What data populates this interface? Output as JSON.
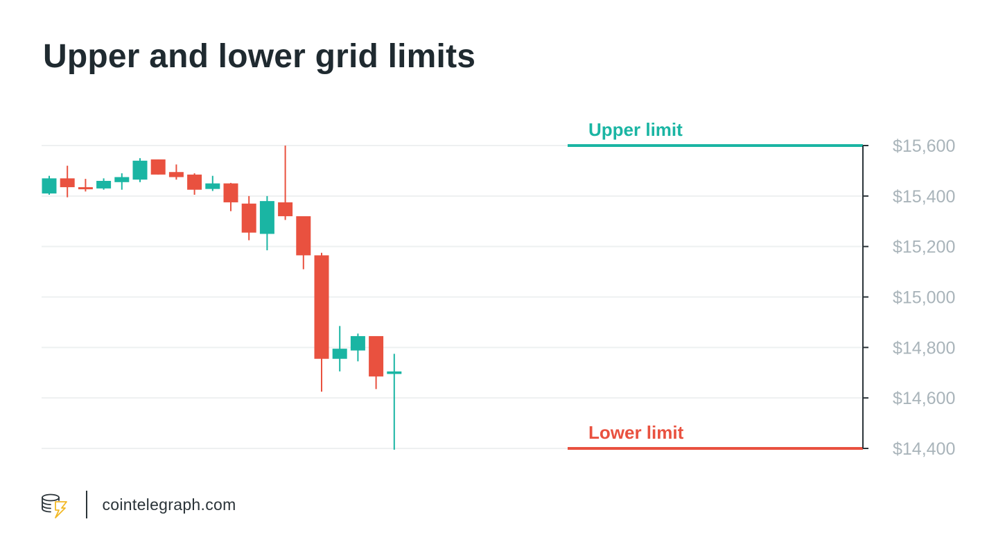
{
  "chart_data": {
    "type": "candlestick",
    "title": "Upper and lower grid limits",
    "ylim": [
      14400,
      15600
    ],
    "yticks": [
      15600,
      15400,
      15200,
      15000,
      14800,
      14600,
      14400
    ],
    "ytick_labels": [
      "$15,600",
      "$15,400",
      "$15,200",
      "$15,000",
      "$14,800",
      "$14,600",
      "$14,400"
    ],
    "grid": true,
    "colors": {
      "up": "#1ab5a3",
      "down": "#e9513f",
      "upper_limit": "#1ab5a3",
      "lower_limit": "#e9513f",
      "axis": "#2a3338",
      "grid": "#eef0f1",
      "tick_label": "#a9b4ba"
    },
    "candles": [
      {
        "open": 15410,
        "high": 15480,
        "low": 15405,
        "close": 15470
      },
      {
        "open": 15470,
        "high": 15520,
        "low": 15395,
        "close": 15435
      },
      {
        "open": 15435,
        "high": 15468,
        "low": 15418,
        "close": 15428
      },
      {
        "open": 15430,
        "high": 15470,
        "low": 15425,
        "close": 15460
      },
      {
        "open": 15455,
        "high": 15490,
        "low": 15425,
        "close": 15475
      },
      {
        "open": 15465,
        "high": 15550,
        "low": 15455,
        "close": 15540
      },
      {
        "open": 15545,
        "high": 15545,
        "low": 15485,
        "close": 15485
      },
      {
        "open": 15495,
        "high": 15525,
        "low": 15465,
        "close": 15475
      },
      {
        "open": 15485,
        "high": 15490,
        "low": 15405,
        "close": 15425
      },
      {
        "open": 15428,
        "high": 15480,
        "low": 15420,
        "close": 15450
      },
      {
        "open": 15450,
        "high": 15452,
        "low": 15340,
        "close": 15375
      },
      {
        "open": 15370,
        "high": 15400,
        "low": 15225,
        "close": 15255
      },
      {
        "open": 15250,
        "high": 15400,
        "low": 15185,
        "close": 15380
      },
      {
        "open": 15375,
        "high": 15600,
        "low": 15305,
        "close": 15320
      },
      {
        "open": 15320,
        "high": 15320,
        "low": 15110,
        "close": 15165
      },
      {
        "open": 15165,
        "high": 15175,
        "low": 14625,
        "close": 14755
      },
      {
        "open": 14755,
        "high": 14885,
        "low": 14705,
        "close": 14795
      },
      {
        "open": 14788,
        "high": 14855,
        "low": 14745,
        "close": 14845
      },
      {
        "open": 14845,
        "high": 14845,
        "low": 14635,
        "close": 14685
      },
      {
        "open": 14695,
        "high": 14775,
        "low": 14395,
        "close": 14705
      }
    ],
    "limits": {
      "upper": {
        "label": "Upper limit",
        "value": 15600
      },
      "lower": {
        "label": "Lower limit",
        "value": 14400
      }
    }
  },
  "footer": {
    "logo_icon": "cointelegraph-logo-icon",
    "site": "cointelegraph.com"
  }
}
